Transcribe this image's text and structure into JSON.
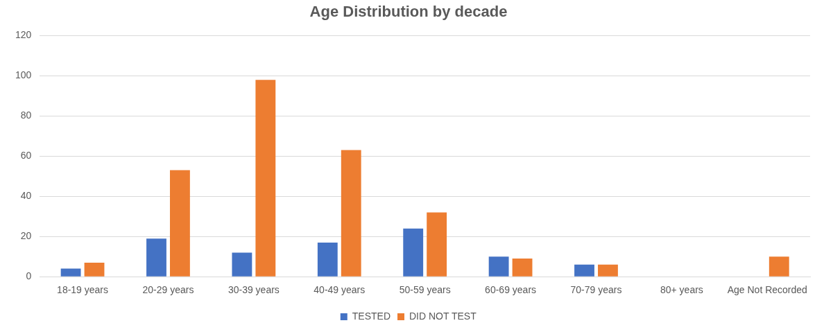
{
  "chart_data": {
    "type": "bar",
    "title": "Age Distribution by decade",
    "categories": [
      "18-19 years",
      "20-29 years",
      "30-39 years",
      "40-49 years",
      "50-59 years",
      "60-69 years",
      "70-79 years",
      "80+ years",
      "Age Not Recorded"
    ],
    "series": [
      {
        "name": "TESTED",
        "color": "#4472c4",
        "values": [
          4,
          19,
          12,
          17,
          24,
          10,
          6,
          0,
          0
        ]
      },
      {
        "name": "DID NOT TEST",
        "color": "#ed7d31",
        "values": [
          7,
          53,
          98,
          63,
          32,
          9,
          6,
          0,
          10
        ]
      }
    ],
    "ylim": [
      0,
      120
    ],
    "yticks": [
      0,
      20,
      40,
      60,
      80,
      100,
      120
    ],
    "grid": "y",
    "legend": "bottom"
  }
}
